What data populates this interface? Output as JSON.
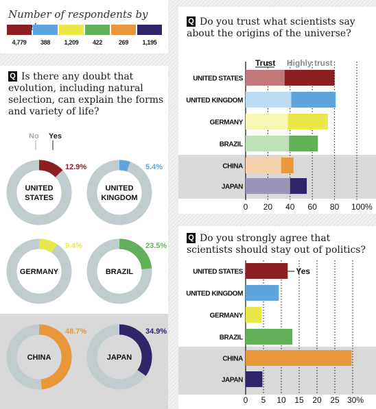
{
  "colors": {
    "United States": "#8b1f24",
    "United Kingdom": "#5fa5dc",
    "Germany": "#e8e84a",
    "Brazil": "#62b05a",
    "China": "#e8973a",
    "Japan": "#2e2668",
    "donut_bg": "#c0ccce",
    "trust_tints": [
      "#c0787c",
      "#bddcf3",
      "#f7f7b4",
      "#bfe1ba",
      "#f5d1ac",
      "#9a94b6"
    ],
    "highlight_band": "#d9d9d9"
  },
  "legend": {
    "title": "Number of respondents by country",
    "counts": [
      "4,779",
      "388",
      "1,209",
      "422",
      "269",
      "1,195"
    ]
  },
  "q1": {
    "marker": "Q",
    "question": "Is there any doubt that evolution, including natural selection, can explain the forms and variety of life?",
    "no_label": "No",
    "yes_label": "Yes"
  },
  "q2": {
    "marker": "Q",
    "question": "Do you trust what scientists say about the origins of the universe?",
    "trust_label": "Trust",
    "highly_label": "Highly trust"
  },
  "q3": {
    "marker": "Q",
    "question": "Do you strongly agree that scientists should stay out of politics?",
    "yes_label": "Yes"
  },
  "chart_data": [
    {
      "type": "pie",
      "title": "Is there any doubt that evolution, including natural selection, can explain the forms and variety of life?",
      "categories": [
        "UNITED STATES",
        "UNITED KINGDOM",
        "GERMANY",
        "BRAZIL",
        "CHINA",
        "JAPAN"
      ],
      "series": [
        {
          "name": "Yes",
          "values": [
            12.9,
            5.4,
            9.4,
            23.5,
            48.7,
            34.9
          ]
        }
      ],
      "value_labels": [
        "12.9%",
        "5.4%",
        "9.4%",
        "23.5%",
        "48.7%",
        "34.9%"
      ]
    },
    {
      "type": "bar",
      "title": "Do you trust what scientists say about the origins of the universe?",
      "categories": [
        "UNITED STATES",
        "UNITED KINGDOM",
        "GERMANY",
        "BRAZIL",
        "CHINA",
        "JAPAN"
      ],
      "series": [
        {
          "name": "Trust",
          "values": [
            35,
            41,
            38,
            39,
            32,
            40
          ]
        },
        {
          "name": "Highly trust",
          "values": [
            45,
            40,
            36,
            26,
            11,
            15
          ]
        }
      ],
      "stacked": true,
      "xlim": [
        0,
        100
      ],
      "xticks": [
        "0",
        "20",
        "40",
        "60",
        "80",
        "100%"
      ]
    },
    {
      "type": "bar",
      "title": "Do you strongly agree that scientists should stay out of politics?",
      "categories": [
        "UNITED STATES",
        "UNITED KINGDOM",
        "GERMANY",
        "BRAZIL",
        "CHINA",
        "JAPAN"
      ],
      "series": [
        {
          "name": "Yes",
          "values": [
            11.8,
            9.3,
            4.5,
            13.1,
            29.7,
            4.7
          ]
        }
      ],
      "xlim": [
        0,
        30
      ],
      "xticks": [
        "0",
        "5",
        "10",
        "15",
        "20",
        "25",
        "30%"
      ]
    }
  ]
}
